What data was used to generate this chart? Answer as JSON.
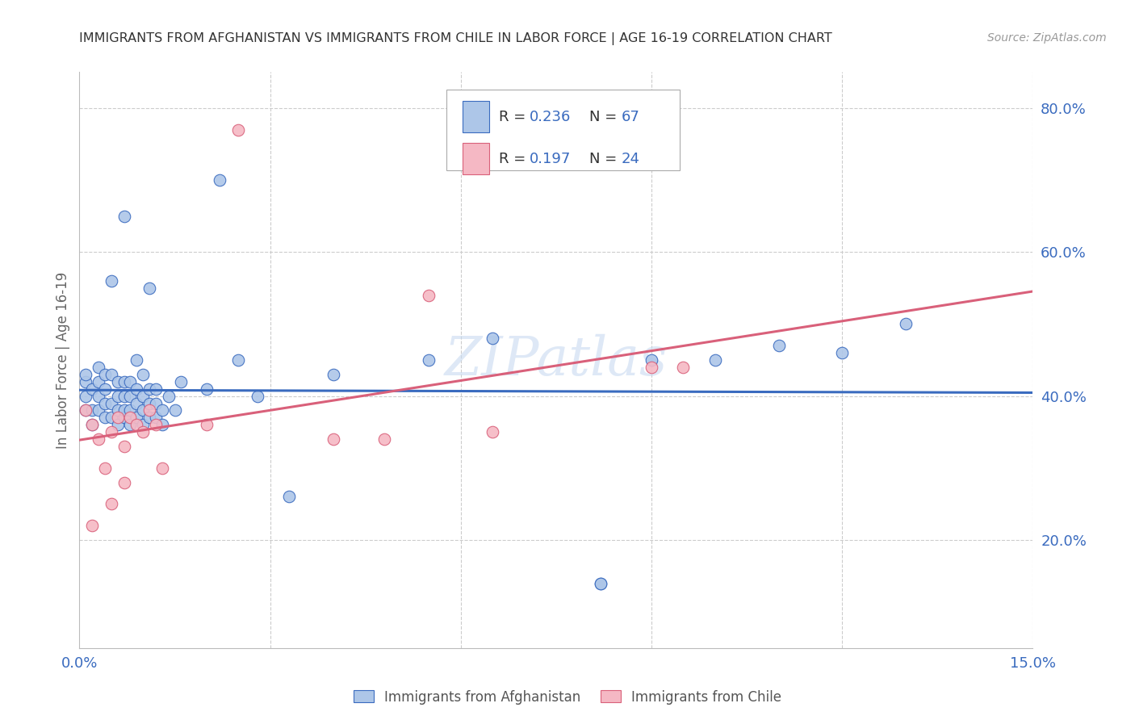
{
  "title": "IMMIGRANTS FROM AFGHANISTAN VS IMMIGRANTS FROM CHILE IN LABOR FORCE | AGE 16-19 CORRELATION CHART",
  "source": "Source: ZipAtlas.com",
  "ylabel": "In Labor Force | Age 16-19",
  "xlim": [
    0.0,
    0.15
  ],
  "ylim": [
    0.05,
    0.85
  ],
  "yticks_right": [
    0.2,
    0.4,
    0.6,
    0.8
  ],
  "ytick_right_labels": [
    "20.0%",
    "40.0%",
    "60.0%",
    "80.0%"
  ],
  "r_afghanistan": "0.236",
  "n_afghanistan": "67",
  "r_chile": "0.197",
  "n_chile": "24",
  "color_afghanistan": "#adc6e8",
  "color_chile": "#f5b8c4",
  "trend_color_afghanistan": "#3a6bbf",
  "trend_color_chile": "#d9607a",
  "label_color": "#3a6bbf",
  "legend_r_label": "R = ",
  "legend_n_label": "N = ",
  "watermark": "ZIPatlas",
  "afghanistan_x": [
    0.001,
    0.001,
    0.001,
    0.001,
    0.002,
    0.002,
    0.002,
    0.003,
    0.003,
    0.003,
    0.003,
    0.004,
    0.004,
    0.004,
    0.004,
    0.005,
    0.005,
    0.005,
    0.005,
    0.006,
    0.006,
    0.006,
    0.006,
    0.007,
    0.007,
    0.007,
    0.007,
    0.007,
    0.008,
    0.008,
    0.008,
    0.008,
    0.009,
    0.009,
    0.009,
    0.009,
    0.01,
    0.01,
    0.01,
    0.01,
    0.011,
    0.011,
    0.011,
    0.011,
    0.012,
    0.012,
    0.012,
    0.013,
    0.013,
    0.014,
    0.015,
    0.016,
    0.02,
    0.022,
    0.025,
    0.028,
    0.033,
    0.04,
    0.055,
    0.065,
    0.082,
    0.082,
    0.09,
    0.1,
    0.11,
    0.12,
    0.13
  ],
  "afghanistan_y": [
    0.38,
    0.4,
    0.42,
    0.43,
    0.36,
    0.38,
    0.41,
    0.38,
    0.4,
    0.42,
    0.44,
    0.37,
    0.39,
    0.41,
    0.43,
    0.37,
    0.39,
    0.56,
    0.43,
    0.36,
    0.38,
    0.4,
    0.42,
    0.37,
    0.38,
    0.4,
    0.42,
    0.65,
    0.36,
    0.38,
    0.4,
    0.42,
    0.37,
    0.39,
    0.41,
    0.45,
    0.36,
    0.38,
    0.4,
    0.43,
    0.37,
    0.39,
    0.41,
    0.55,
    0.37,
    0.39,
    0.41,
    0.36,
    0.38,
    0.4,
    0.38,
    0.42,
    0.41,
    0.7,
    0.45,
    0.4,
    0.26,
    0.43,
    0.45,
    0.48,
    0.14,
    0.14,
    0.45,
    0.45,
    0.47,
    0.46,
    0.5
  ],
  "chile_x": [
    0.001,
    0.002,
    0.002,
    0.003,
    0.004,
    0.005,
    0.005,
    0.006,
    0.007,
    0.007,
    0.008,
    0.009,
    0.01,
    0.011,
    0.012,
    0.013,
    0.02,
    0.025,
    0.04,
    0.048,
    0.055,
    0.065,
    0.09,
    0.095
  ],
  "chile_y": [
    0.38,
    0.36,
    0.22,
    0.34,
    0.3,
    0.35,
    0.25,
    0.37,
    0.28,
    0.33,
    0.37,
    0.36,
    0.35,
    0.38,
    0.36,
    0.3,
    0.36,
    0.77,
    0.34,
    0.34,
    0.54,
    0.35,
    0.44,
    0.44
  ]
}
